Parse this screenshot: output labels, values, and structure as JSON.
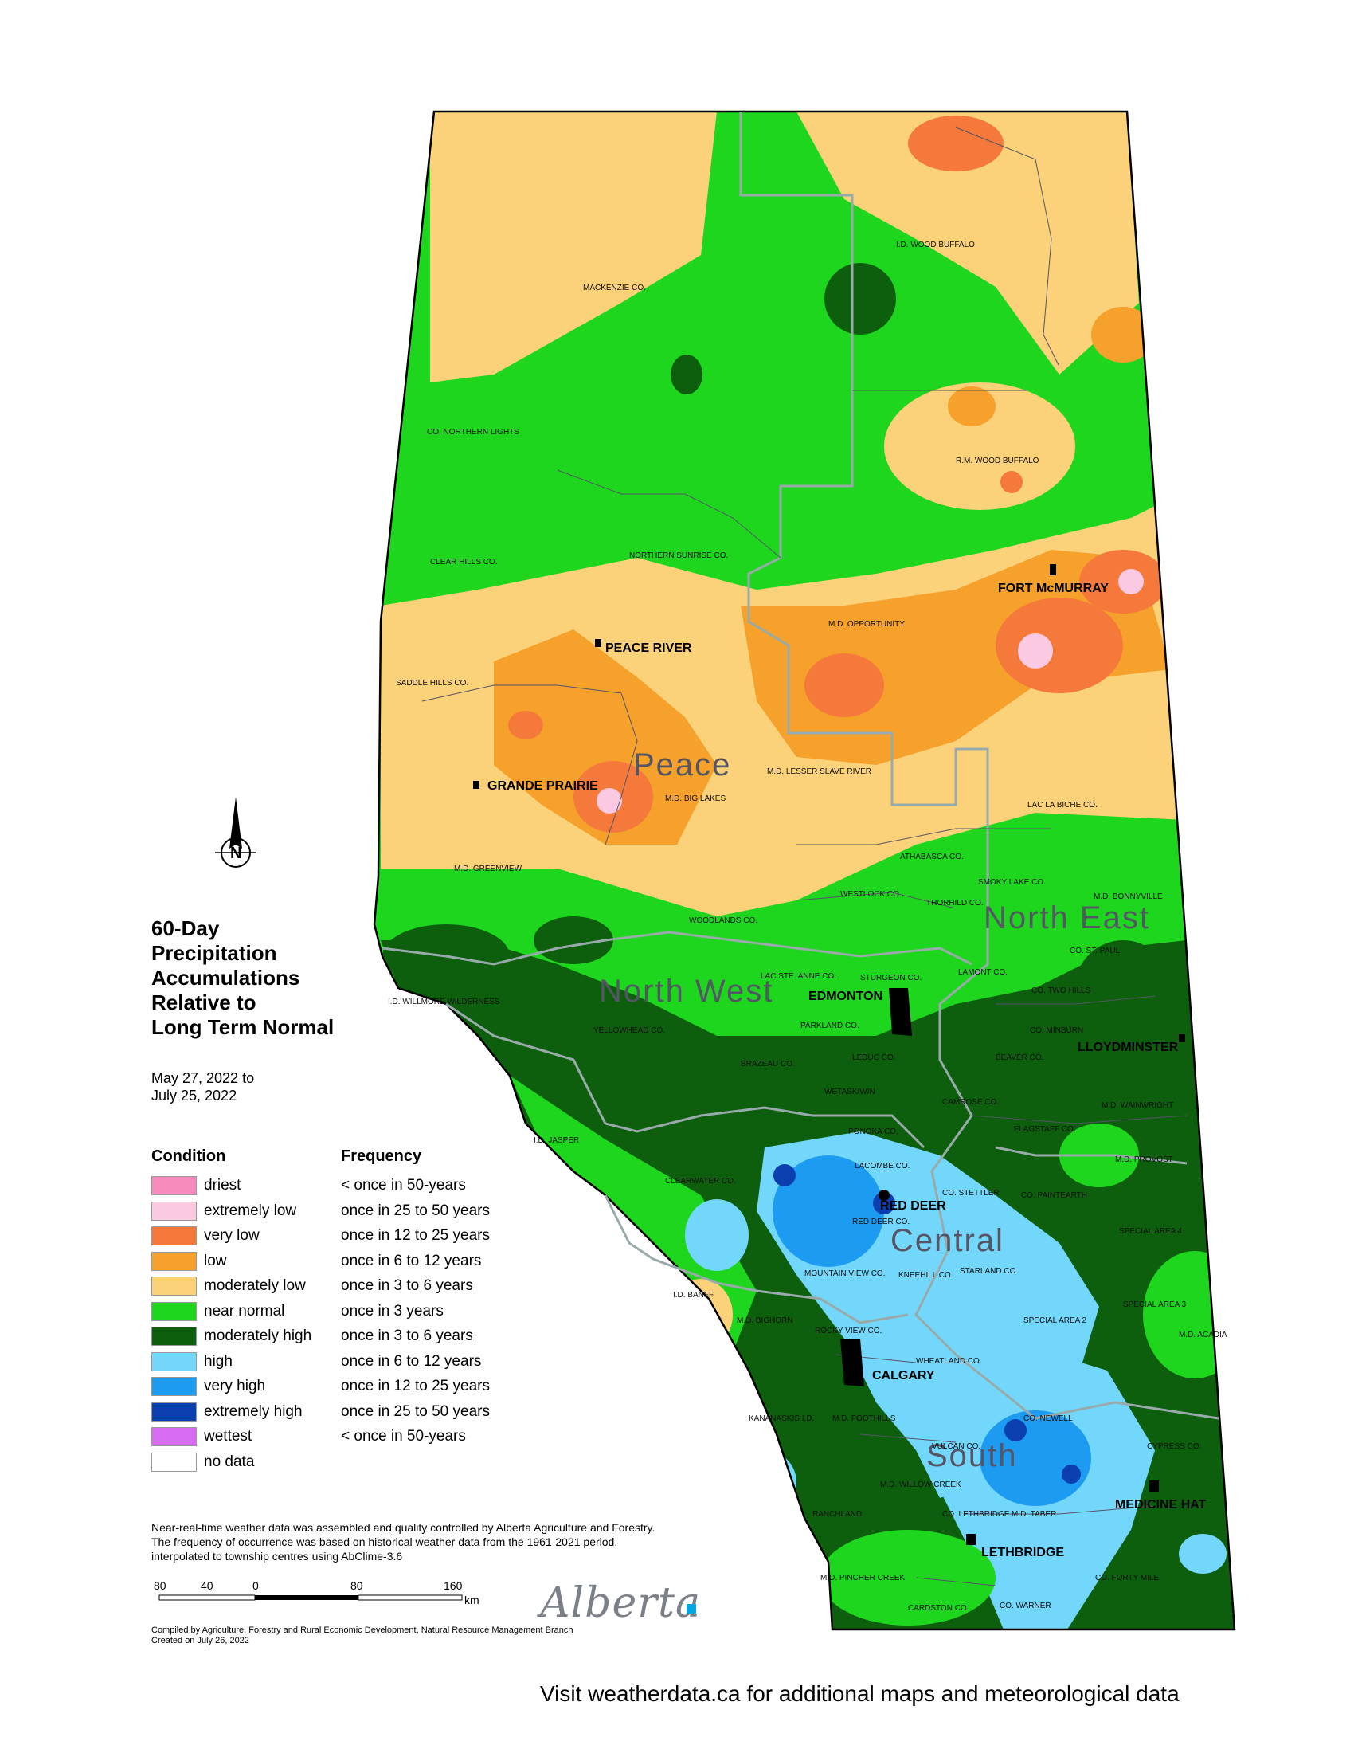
{
  "title_lines": [
    "60-Day",
    "Precipitation",
    "Accumulations",
    "Relative to",
    "Long Term Normal"
  ],
  "dates": [
    "May 27, 2022 to",
    "July 25, 2022"
  ],
  "legend": {
    "condition_header": "Condition",
    "frequency_header": "Frequency",
    "rows": [
      {
        "condition": "driest",
        "frequency": "< once in 50-years",
        "color": "#f78bbb"
      },
      {
        "condition": "extremely low",
        "frequency": "once in 25 to 50 years",
        "color": "#fcc9e3"
      },
      {
        "condition": "very low",
        "frequency": "once in 12 to 25 years",
        "color": "#f5793a"
      },
      {
        "condition": "low",
        "frequency": "once in 6 to 12 years",
        "color": "#f5a12b"
      },
      {
        "condition": "moderately low",
        "frequency": "once in 3 to 6 years",
        "color": "#fbd17a"
      },
      {
        "condition": "near normal",
        "frequency": "once in 3 years",
        "color": "#1fd61f"
      },
      {
        "condition": "moderately high",
        "frequency": "once in 3 to 6 years",
        "color": "#0d5e0d"
      },
      {
        "condition": "high",
        "frequency": "once in 6 to 12 years",
        "color": "#73d6fb"
      },
      {
        "condition": "very high",
        "frequency": "once in 12 to 25 years",
        "color": "#1d9bf0"
      },
      {
        "condition": "extremely high",
        "frequency": "once in 25 to 50 years",
        "color": "#0b3fb0"
      },
      {
        "condition": "wettest",
        "frequency": "< once in 50-years",
        "color": "#d76cf2"
      },
      {
        "condition": "no data",
        "frequency": "",
        "color": "#ffffff"
      }
    ]
  },
  "regions": [
    "Peace",
    "North West",
    "North East",
    "Central",
    "South"
  ],
  "cities": [
    "PEACE RIVER",
    "GRANDE PRAIRIE",
    "FORT McMURRAY",
    "EDMONTON",
    "LLOYDMINSTER",
    "RED DEER",
    "CALGARY",
    "MEDICINE HAT",
    "LETHBRIDGE"
  ],
  "county_labels": [
    "MACKENZIE CO.",
    "I.D. WOOD BUFFALO",
    "CO. NORTHERN LIGHTS",
    "R.M. WOOD BUFFALO",
    "CLEAR HILLS CO.",
    "NORTHERN SUNRISE CO.",
    "M.D. OPPORTUNITY",
    "SADDLE HILLS CO.",
    "M.D. LESSER SLAVE RIVER",
    "M.D. BIG LAKES",
    "LAC LA BICHE CO.",
    "M.D. GREENVIEW",
    "ATHABASCA CO.",
    "WOODLANDS CO.",
    "I.D. WILLMORE WILDERNESS",
    "YELLOWHEAD CO.",
    "PARKLAND CO.",
    "BRAZEAU CO.",
    "LEDUC CO.",
    "I.D. JASPER",
    "CLEARWATER CO.",
    "PONOKA CO.",
    "LACOMBE CO.",
    "RED DEER CO.",
    "STARLAND CO.",
    "SPECIAL AREA 2",
    "SPECIAL AREA 3",
    "SPECIAL AREA 4",
    "I.D. BANFF",
    "ROCKY VIEW CO.",
    "WHEATLAND CO.",
    "CO. NEWELL",
    "M.D. FOOTHILLS",
    "VULCAN CO.",
    "CYPRESS CO.",
    "M.D. TABER",
    "CARDSTON CO.",
    "CO. WARNER",
    "CO. FORTY MILE",
    "M.D. ACADIA",
    "M.D. WAINWRIGHT",
    "M.D. PROVOST",
    "CO. PAINTEARTH",
    "FLAGSTAFF CO.",
    "BEAVER CO.",
    "CO. MINBURN",
    "CO. TWO HILLS",
    "CO. ST. PAUL",
    "M.D. BONNYVILLE",
    "LAMONT CO.",
    "STURGEON CO.",
    "LAC STE. ANNE CO.",
    "WESTLOCK CO.",
    "THORHILD CO.",
    "SMOKY LAKE CO.",
    "KNEEHILL CO.",
    "MOUNTAIN VIEW CO.",
    "CO. STETTLER",
    "CAMROSE CO.",
    "WETASKIWIN",
    "M.D. PINCHER CREEK",
    "M.D. WILLOW CREEK",
    "CO. LETHBRIDGE",
    "RANCHLAND",
    "KANANASKIS I.D.",
    "M.D. BIGHORN"
  ],
  "scale": {
    "ticks": [
      "80",
      "40",
      "0",
      "80",
      "160"
    ],
    "unit": "km"
  },
  "credit": "Near-real-time weather data was assembled and quality controlled by Alberta Agriculture and Forestry. The frequency of occurrence was based on historical weather data from the 1961-2021 period, interpolated to township centres using AbClime-3.6",
  "compiled": [
    "Compiled by Agriculture, Forestry and Rural Economic Development, Natural Resource Management Branch",
    "Created on July 26, 2022"
  ],
  "logo": "Alberta",
  "visit": "Visit weatherdata.ca for additional maps and meteorological data"
}
